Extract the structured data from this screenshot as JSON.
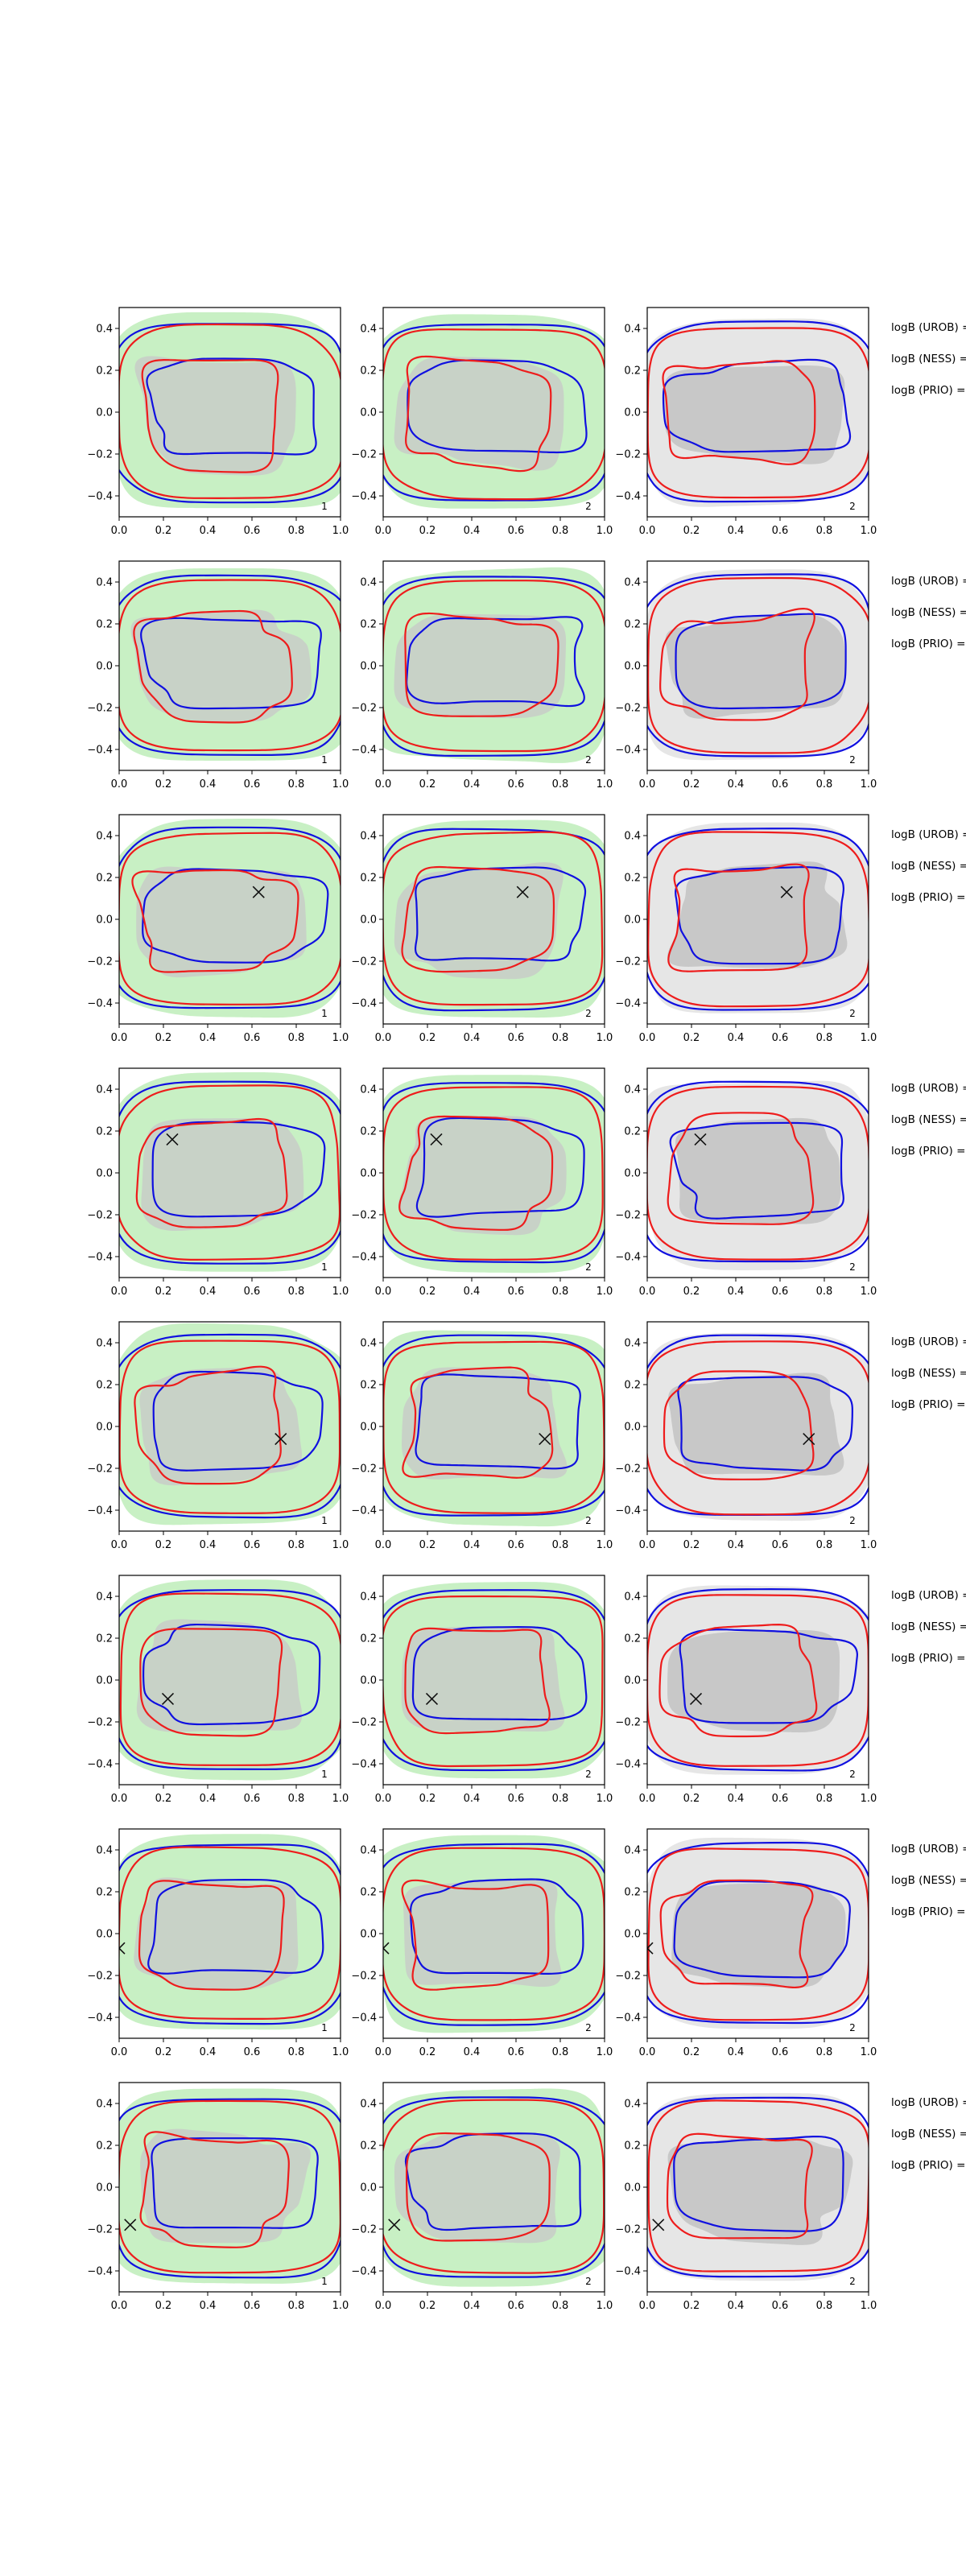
{
  "figure": {
    "columns": 3,
    "rows": 8,
    "colors": {
      "red_contour": "#ee1c1c",
      "blue_contour": "#1010e0",
      "green_fill": "#c8f0c4",
      "gray_fill": "#c8c8c8",
      "light_gray_fill": "#e6e6e6",
      "marker": "#111111"
    }
  },
  "chart_data": {
    "type": "contour-grid",
    "xlim": [
      0.0,
      1.0
    ],
    "ylim": [
      -0.5,
      0.5
    ],
    "xticks": [
      "0.0",
      "0.2",
      "0.4",
      "0.6",
      "0.8",
      "1.0"
    ],
    "xtick_values": [
      0.0,
      0.2,
      0.4,
      0.6,
      0.8,
      1.0
    ],
    "yticks": [
      "0.4",
      "0.2",
      "0.0",
      "−0.2",
      "−0.4"
    ],
    "ytick_values": [
      0.4,
      0.2,
      0.0,
      -0.2,
      -0.4
    ],
    "column_tags": [
      "1",
      "2",
      "2"
    ],
    "row_labels": [
      "logB (UROB) =",
      "logB (NESS) =",
      "logB (PRIO) ="
    ],
    "markers": [
      null,
      null,
      {
        "x": 0.63,
        "y": 0.13
      },
      {
        "x": 0.24,
        "y": 0.16
      },
      {
        "x": 0.73,
        "y": -0.06
      },
      {
        "x": 0.22,
        "y": -0.09
      },
      {
        "x": 0.0,
        "y": -0.07
      },
      {
        "x": 0.05,
        "y": -0.18
      }
    ]
  }
}
